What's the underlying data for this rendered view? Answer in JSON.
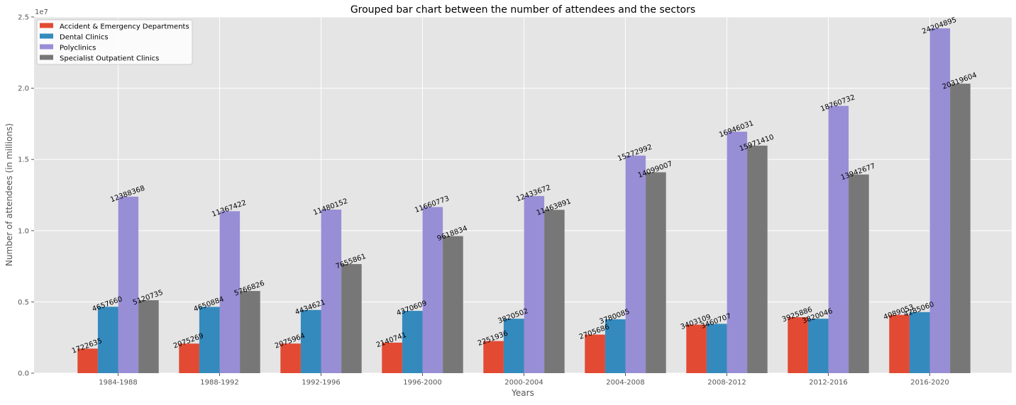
{
  "chart_data": {
    "type": "bar",
    "title": "Grouped bar chart between the number of attendees and the sectors",
    "xlabel": "Years",
    "ylabel": "Number of attendees (in millions)",
    "y_offset_label": "1e7",
    "ylim": [
      0,
      25000000
    ],
    "y_ticks": [
      0,
      5000000,
      10000000,
      15000000,
      20000000,
      25000000
    ],
    "y_tick_labels": [
      "0.0",
      "0.5",
      "1.0",
      "1.5",
      "2.0",
      "2.5"
    ],
    "grid": true,
    "legend_position": "top-left",
    "categories": [
      "1984-1988",
      "1988-1992",
      "1992-1996",
      "1996-2000",
      "2000-2004",
      "2004-2008",
      "2008-2012",
      "2012-2016",
      "2016-2020"
    ],
    "series": [
      {
        "name": "Accident & Emergency Departments",
        "color": "#E24A33",
        "values": [
          1722635,
          2075269,
          2075964,
          2140741,
          2251936,
          2705686,
          3403109,
          3925886,
          4089053
        ]
      },
      {
        "name": "Dental Clinics",
        "color": "#348ABD",
        "values": [
          4657660,
          4650884,
          4434621,
          4370609,
          3820502,
          3780085,
          3460707,
          3820046,
          4285060
        ]
      },
      {
        "name": "Polyclinics",
        "color": "#988ED5",
        "values": [
          12388368,
          11367422,
          11480152,
          11660773,
          12433672,
          15272992,
          16946031,
          18760732,
          24204895
        ]
      },
      {
        "name": "Specialist Outpatient Clinics",
        "color": "#777777",
        "values": [
          5120735,
          5766826,
          7655861,
          9618834,
          11463891,
          14099007,
          15971410,
          13942677,
          20319604
        ]
      }
    ]
  }
}
